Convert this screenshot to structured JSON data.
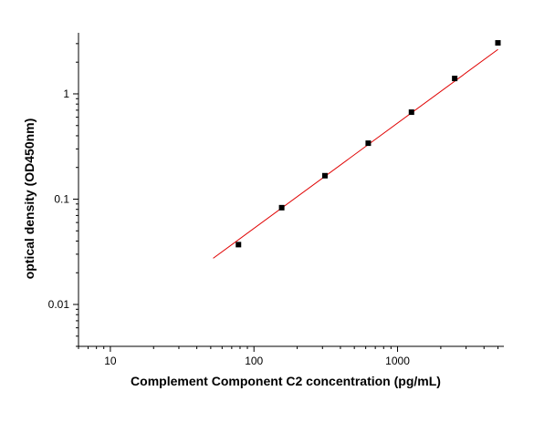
{
  "chart_data": {
    "type": "scatter",
    "xlabel": "Complement Component C2 concentration (pg/mL)",
    "ylabel": "optical density (OD450nm)",
    "x_scale": "log",
    "y_scale": "log",
    "xlim": [
      6,
      5500
    ],
    "ylim": [
      0.004,
      3.8
    ],
    "x_ticks": [
      {
        "value": 10,
        "label": "10"
      },
      {
        "value": 100,
        "label": "100"
      },
      {
        "value": 1000,
        "label": "1000"
      }
    ],
    "y_ticks": [
      {
        "value": 0.01,
        "label": "0.01"
      },
      {
        "value": 0.1,
        "label": "0.1"
      },
      {
        "value": 1,
        "label": "1"
      }
    ],
    "grid": false,
    "series": [
      {
        "x": [
          78,
          156,
          312,
          625,
          1250,
          2500,
          5000
        ],
        "y": [
          0.037,
          0.083,
          0.167,
          0.34,
          0.67,
          1.4,
          3.05
        ],
        "marker": "square",
        "color": "#000000"
      }
    ],
    "fit_line": {
      "x_range": [
        52,
        5000
      ],
      "slope": 1.0,
      "ref_x": 1250,
      "ref_y": 0.66,
      "color": "#e00000"
    }
  }
}
